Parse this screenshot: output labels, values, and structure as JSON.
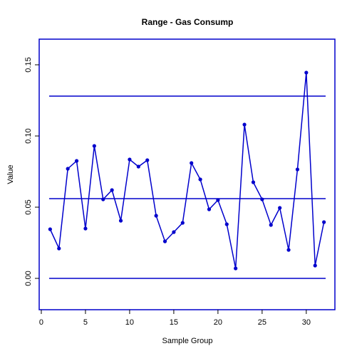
{
  "chart_data": {
    "type": "line",
    "title": "Range - Gas Consump",
    "x_label": "Sample Group",
    "y_label": "Value",
    "x": [
      1,
      2,
      3,
      4,
      5,
      6,
      7,
      8,
      9,
      10,
      11,
      12,
      13,
      14,
      15,
      16,
      17,
      18,
      19,
      20,
      21,
      22,
      23,
      24,
      25,
      26,
      27,
      28,
      29,
      30,
      31,
      32
    ],
    "series": [
      {
        "color": "#0000cc",
        "values": [
          0.0345,
          0.021,
          0.077,
          0.0825,
          0.035,
          0.093,
          0.0555,
          0.062,
          0.0405,
          0.0835,
          0.0785,
          0.083,
          0.044,
          0.026,
          0.0325,
          0.039,
          0.081,
          0.0695,
          0.0485,
          0.055,
          0.038,
          0.007,
          0.108,
          0.0675,
          0.0555,
          0.0375,
          0.0495,
          0.02,
          0.0765,
          0.1445,
          0.009,
          0.0395
        ]
      }
    ],
    "control_lines": [
      0.128,
      0.056,
      0
    ],
    "xlim": [
      -0.24,
      33.24
    ],
    "xticks": [
      0,
      5,
      10,
      15,
      20,
      25,
      30
    ],
    "ylim": [
      -0.022,
      0.168
    ],
    "yticks": [
      {
        "value": 0,
        "label": "0.00"
      },
      {
        "value": 0.05,
        "label": "0.05"
      },
      {
        "value": 0.1,
        "label": "0.10"
      },
      {
        "value": 0.15,
        "label": "0.15"
      }
    ]
  }
}
